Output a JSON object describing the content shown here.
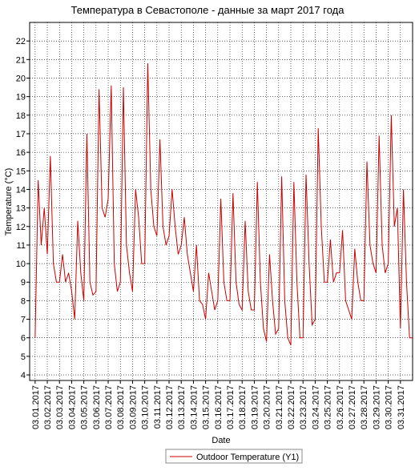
{
  "chart_data": {
    "type": "line",
    "title": "Температура в Севастополе - данные за март 2017 года",
    "x_label": "Date",
    "y_label": "Temperature (°C)",
    "xlim": [
      -0.45,
      31
    ],
    "ylim": [
      3.7,
      23
    ],
    "xticks": [
      {
        "value": 0,
        "label": "03.01.2017"
      },
      {
        "value": 1,
        "label": "03.02.2017"
      },
      {
        "value": 2,
        "label": "03.03.2017"
      },
      {
        "value": 3,
        "label": "03.04.2017"
      },
      {
        "value": 4,
        "label": "03.05.2017"
      },
      {
        "value": 5,
        "label": "03.06.2017"
      },
      {
        "value": 6,
        "label": "03.07.2017"
      },
      {
        "value": 7,
        "label": "03.08.2017"
      },
      {
        "value": 8,
        "label": "03.09.2017"
      },
      {
        "value": 9,
        "label": "03.10.2017"
      },
      {
        "value": 10,
        "label": "03.11.2017"
      },
      {
        "value": 11,
        "label": "03.12.2017"
      },
      {
        "value": 12,
        "label": "03.13.2017"
      },
      {
        "value": 13,
        "label": "03.14.2017"
      },
      {
        "value": 14,
        "label": "03.15.2017"
      },
      {
        "value": 15,
        "label": "03.16.2017"
      },
      {
        "value": 16,
        "label": "03.17.2017"
      },
      {
        "value": 17,
        "label": "03.18.2017"
      },
      {
        "value": 18,
        "label": "03.19.2017"
      },
      {
        "value": 19,
        "label": "03.20.2017"
      },
      {
        "value": 20,
        "label": "03.21.2017"
      },
      {
        "value": 21,
        "label": "03.22.2017"
      },
      {
        "value": 22,
        "label": "03.23.2017"
      },
      {
        "value": 23,
        "label": "03.24.2017"
      },
      {
        "value": 24,
        "label": "03.25.2017"
      },
      {
        "value": 25,
        "label": "03.26.2017"
      },
      {
        "value": 26,
        "label": "03.27.2017"
      },
      {
        "value": 27,
        "label": "03.28.2017"
      },
      {
        "value": 28,
        "label": "03.29.2017"
      },
      {
        "value": 29,
        "label": "03.30.2017"
      },
      {
        "value": 30,
        "label": "03.31.2017"
      }
    ],
    "yticks": [
      4,
      5,
      6,
      7,
      8,
      9,
      10,
      11,
      12,
      13,
      14,
      15,
      16,
      17,
      18,
      19,
      20,
      21,
      22
    ],
    "grid": true,
    "x": [
      0,
      0.25,
      0.5,
      0.75,
      1,
      1.25,
      1.5,
      1.75,
      2,
      2.25,
      2.5,
      2.75,
      3,
      3.25,
      3.5,
      3.75,
      4,
      4.25,
      4.5,
      4.75,
      5,
      5.25,
      5.5,
      5.75,
      6,
      6.25,
      6.5,
      6.75,
      7,
      7.25,
      7.5,
      7.75,
      8,
      8.25,
      8.5,
      8.75,
      9,
      9.25,
      9.5,
      9.75,
      10,
      10.25,
      10.5,
      10.75,
      11,
      11.25,
      11.5,
      11.75,
      12,
      12.25,
      12.5,
      12.75,
      13,
      13.25,
      13.5,
      13.75,
      14,
      14.25,
      14.5,
      14.75,
      15,
      15.25,
      15.5,
      15.75,
      16,
      16.25,
      16.5,
      16.75,
      17,
      17.25,
      17.5,
      17.75,
      18,
      18.25,
      18.5,
      18.75,
      19,
      19.25,
      19.5,
      19.75,
      20,
      20.25,
      20.5,
      20.75,
      21,
      21.25,
      21.5,
      21.75,
      22,
      22.25,
      22.5,
      22.75,
      23,
      23.25,
      23.5,
      23.75,
      24,
      24.25,
      24.5,
      24.75,
      25,
      25.25,
      25.5,
      25.75,
      26,
      26.25,
      26.5,
      26.75,
      27,
      27.25,
      27.5,
      27.75,
      28,
      28.25,
      28.5,
      28.75,
      29,
      29.25,
      29.5,
      29.75,
      30,
      30.25,
      30.5,
      30.75,
      31
    ],
    "series": [
      {
        "name": "Outdoor Temperature (Y1)",
        "color": "#cc0000",
        "values": [
          6,
          14.5,
          11,
          13,
          10.5,
          15.8,
          10,
          9,
          9,
          10.5,
          9,
          9.5,
          8.5,
          7,
          12.3,
          9.5,
          8,
          17,
          9,
          8.3,
          8.5,
          19.4,
          13,
          12.5,
          13.5,
          19.6,
          10,
          8.5,
          9,
          19.5,
          11,
          9.5,
          8.5,
          14,
          12.5,
          10,
          10,
          20.8,
          14,
          12,
          11.5,
          16.7,
          12,
          11,
          11.5,
          14,
          12,
          10.5,
          11,
          12.5,
          10.5,
          9.5,
          8.5,
          11,
          8,
          7.8,
          7,
          9.5,
          8.5,
          7.5,
          8,
          13.5,
          9,
          8,
          8,
          13.8,
          9,
          7.8,
          7.5,
          12.3,
          8.5,
          7.5,
          7.5,
          14.4,
          9,
          6.5,
          5.8,
          10.5,
          8,
          6.2,
          6.5,
          14.7,
          8,
          6,
          5.6,
          14.4,
          9,
          6,
          6,
          14.8,
          10,
          6.7,
          7,
          17.3,
          12,
          9,
          9,
          11.3,
          9,
          9.5,
          9.5,
          11.8,
          8,
          7.5,
          7,
          10.8,
          9,
          8,
          8,
          15.5,
          11,
          10,
          9.5,
          16.9,
          11,
          9.5,
          10,
          18,
          12,
          13,
          6.5,
          14,
          9,
          6,
          6
        ]
      }
    ]
  }
}
